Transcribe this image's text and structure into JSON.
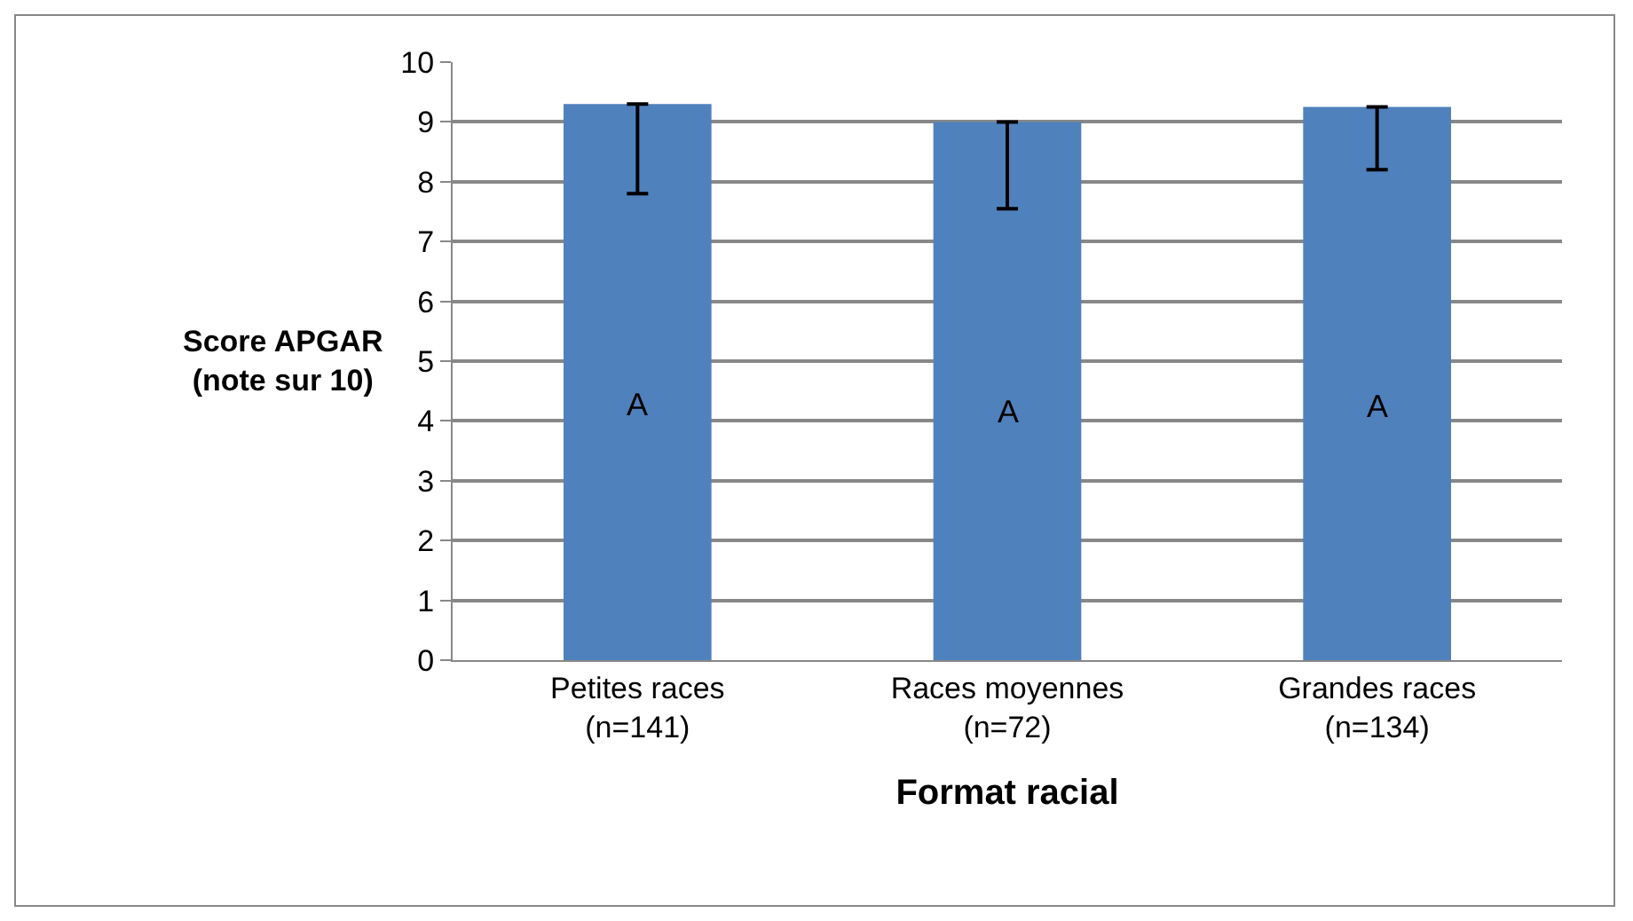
{
  "chart_data": {
    "type": "bar",
    "categories": [
      "Petites races\n(n=141)",
      "Races moyennes\n(n=72)",
      "Grandes races\n(n=134)"
    ],
    "values": [
      9.3,
      9.0,
      9.25
    ],
    "errors": [
      [
        7.8,
        9.3
      ],
      [
        7.55,
        9.0
      ],
      [
        8.2,
        9.25
      ]
    ],
    "color": "#4f81bd",
    "xlabel": "Format racial",
    "ylabel": "Score APGAR\n(note sur 10)",
    "ylim": [
      0,
      10
    ],
    "yticks": [
      0,
      1,
      2,
      3,
      4,
      5,
      6,
      7,
      8,
      9,
      10
    ],
    "grid": "y",
    "legend": false,
    "annotations": [
      "A",
      "A",
      "A"
    ]
  }
}
